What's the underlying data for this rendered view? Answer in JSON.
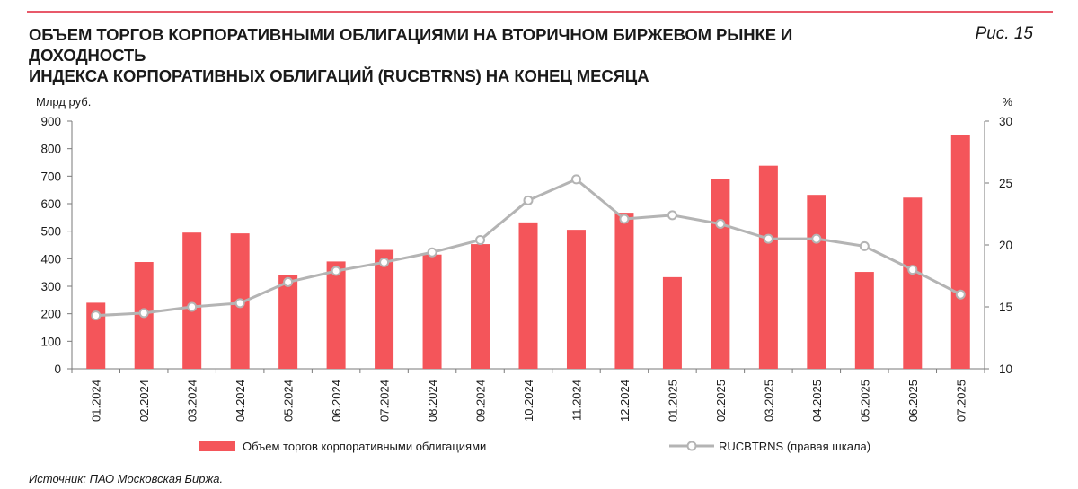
{
  "header": {
    "title_line1": "ОБЪЕМ ТОРГОВ КОРПОРАТИВНЫМИ ОБЛИГАЦИЯМИ НА ВТОРИЧНОМ БИРЖЕВОМ РЫНКЕ И ДОХОДНОСТЬ",
    "title_line2": "ИНДЕКСА КОРПОРАТИВНЫХ ОБЛИГАЦИЙ (RUCBTRNS) НА КОНЕЦ МЕСЯЦА",
    "figure_label": "Рис. 15"
  },
  "footer": {
    "source": "Источник: ПАО Московская Биржа."
  },
  "chart_data": {
    "type": "bar",
    "title": "ОБЪЕМ ТОРГОВ КОРПОРАТИВНЫМИ ОБЛИГАЦИЯМИ НА ВТОРИЧНОМ БИРЖЕВОМ РЫНКЕ И ДОХОДНОСТЬ ИНДЕКСА КОРПОРАТИВНЫХ ОБЛИГАЦИЙ (RUCBTRNS) НА КОНЕЦ МЕСЯЦА",
    "ylabel": "Млрд руб.",
    "y2label": "%",
    "ylim": [
      0,
      900
    ],
    "yticks": [
      0,
      100,
      200,
      300,
      400,
      500,
      600,
      700,
      800,
      900
    ],
    "y2lim": [
      10,
      30
    ],
    "y2ticks": [
      10,
      15,
      20,
      25,
      30
    ],
    "grid": false,
    "legend_position": "bottom",
    "categories": [
      "01.2024",
      "02.2024",
      "03.2024",
      "04.2024",
      "05.2024",
      "06.2024",
      "07.2024",
      "08.2024",
      "09.2024",
      "10.2024",
      "11.2024",
      "12.2024",
      "01.2025",
      "02.2025",
      "03.2025",
      "04.2025",
      "05.2025",
      "06.2025",
      "07.2025"
    ],
    "series": [
      {
        "name": "Объем торгов корпоративными облигациями",
        "type": "bar",
        "axis": "left",
        "color": "#f4555a",
        "values": [
          240,
          388,
          495,
          492,
          340,
          390,
          432,
          415,
          453,
          532,
          505,
          567,
          333,
          690,
          738,
          632,
          352,
          622,
          848
        ]
      },
      {
        "name": "RUCBTRNS (правая шкала)",
        "type": "line",
        "axis": "right",
        "color": "#b4b4b4",
        "values": [
          14.3,
          14.5,
          15.0,
          15.3,
          17.0,
          17.9,
          18.6,
          19.4,
          20.4,
          23.6,
          25.3,
          22.1,
          22.4,
          21.7,
          20.5,
          20.5,
          19.9,
          18.0,
          16.0
        ]
      }
    ]
  }
}
